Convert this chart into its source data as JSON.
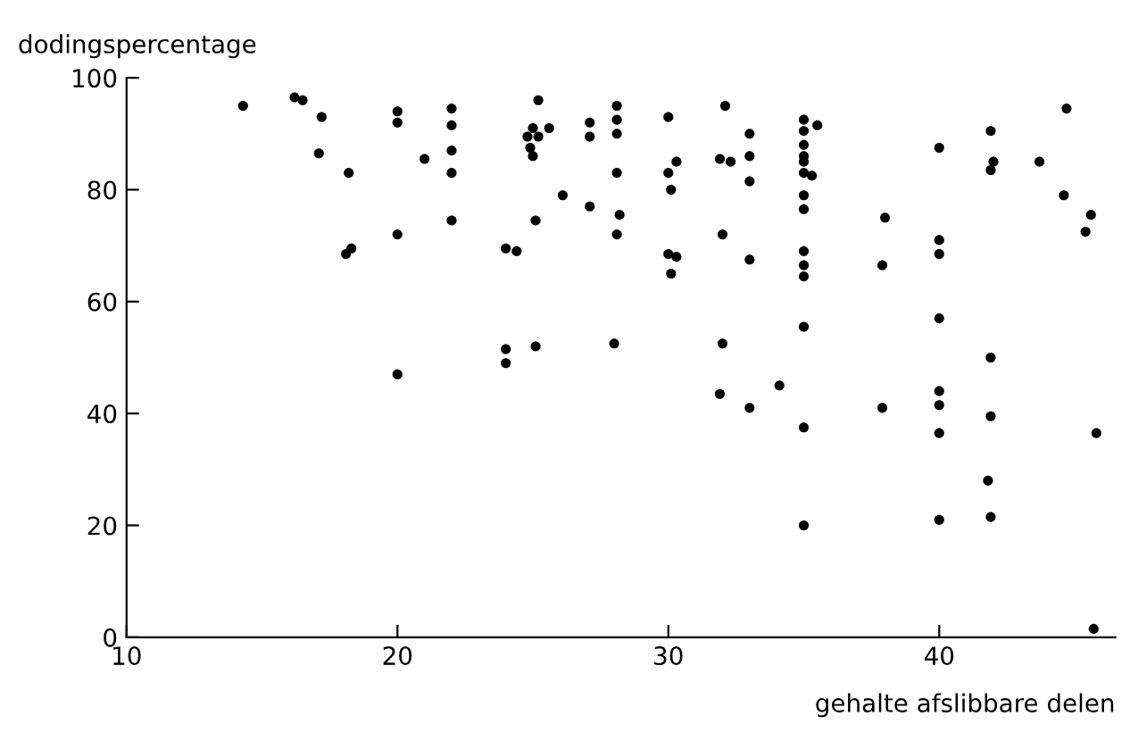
{
  "chart_data": {
    "type": "scatter",
    "ylabel": "dodingspercentage",
    "xlabel": "gehalte afslibbare delen",
    "xlim": [
      10,
      46.5
    ],
    "ylim": [
      0,
      100
    ],
    "xticks": [
      10,
      20,
      30,
      40
    ],
    "yticks": [
      0,
      20,
      40,
      60,
      80,
      100
    ],
    "grid": false,
    "legend": false,
    "marker": "circle",
    "series": [
      {
        "color": "#000000",
        "x": [
          14.3,
          16.2,
          16.5,
          17.2,
          17.1,
          18.2,
          18.1,
          18.3,
          20,
          20,
          20,
          20,
          21,
          22,
          22,
          22,
          22,
          22,
          25.2,
          25,
          25.6,
          24.8,
          25.2,
          24.9,
          25,
          26.1,
          25.1,
          24,
          24.4,
          24,
          24,
          25.1,
          27.1,
          27.1,
          27.1,
          28.1,
          28.1,
          28.1,
          28.1,
          28.2,
          28.1,
          28,
          30,
          30.3,
          30,
          30.1,
          30,
          30.3,
          30.1,
          32.1,
          31.9,
          32.3,
          32,
          32,
          31.9,
          33,
          33,
          33,
          33,
          33,
          34.1,
          35,
          35,
          35,
          35,
          35,
          35,
          35,
          35,
          35,
          35,
          35,
          35,
          35,
          35,
          35.5,
          35.3,
          38,
          37.9,
          37.9,
          40,
          40,
          40,
          40,
          40,
          40,
          40,
          40,
          41.9,
          42,
          41.9,
          41.9,
          41.9,
          41.8,
          41.9,
          43.7,
          44.7,
          44.6,
          45.6,
          45.4,
          45.8,
          45.7
        ],
        "values": [
          95,
          96.5,
          96,
          93,
          86.5,
          83,
          68.5,
          69.5,
          94,
          92,
          72,
          47,
          85.5,
          94.5,
          91.5,
          87,
          83,
          74.5,
          96,
          91,
          91,
          89.5,
          89.5,
          87.5,
          86,
          79,
          74.5,
          69.5,
          69,
          51.5,
          49,
          52,
          92,
          89.5,
          77,
          95,
          92.5,
          90,
          83,
          75.5,
          72,
          52.5,
          93,
          85,
          83,
          80,
          68.5,
          68,
          65,
          95,
          85.5,
          85,
          72,
          52.5,
          43.5,
          90,
          86,
          81.5,
          67.5,
          41,
          45,
          92.5,
          90.5,
          88,
          86,
          85,
          83,
          79,
          76.5,
          69,
          66.5,
          64.5,
          55.5,
          37.5,
          20,
          91.5,
          82.5,
          75,
          66.5,
          41,
          87.5,
          71,
          68.5,
          57,
          44,
          41.5,
          36.5,
          21,
          90.5,
          85,
          83.5,
          50,
          39.5,
          28,
          21.5,
          85,
          94.5,
          79,
          75.5,
          72.5,
          36.5,
          1.5
        ]
      }
    ]
  }
}
